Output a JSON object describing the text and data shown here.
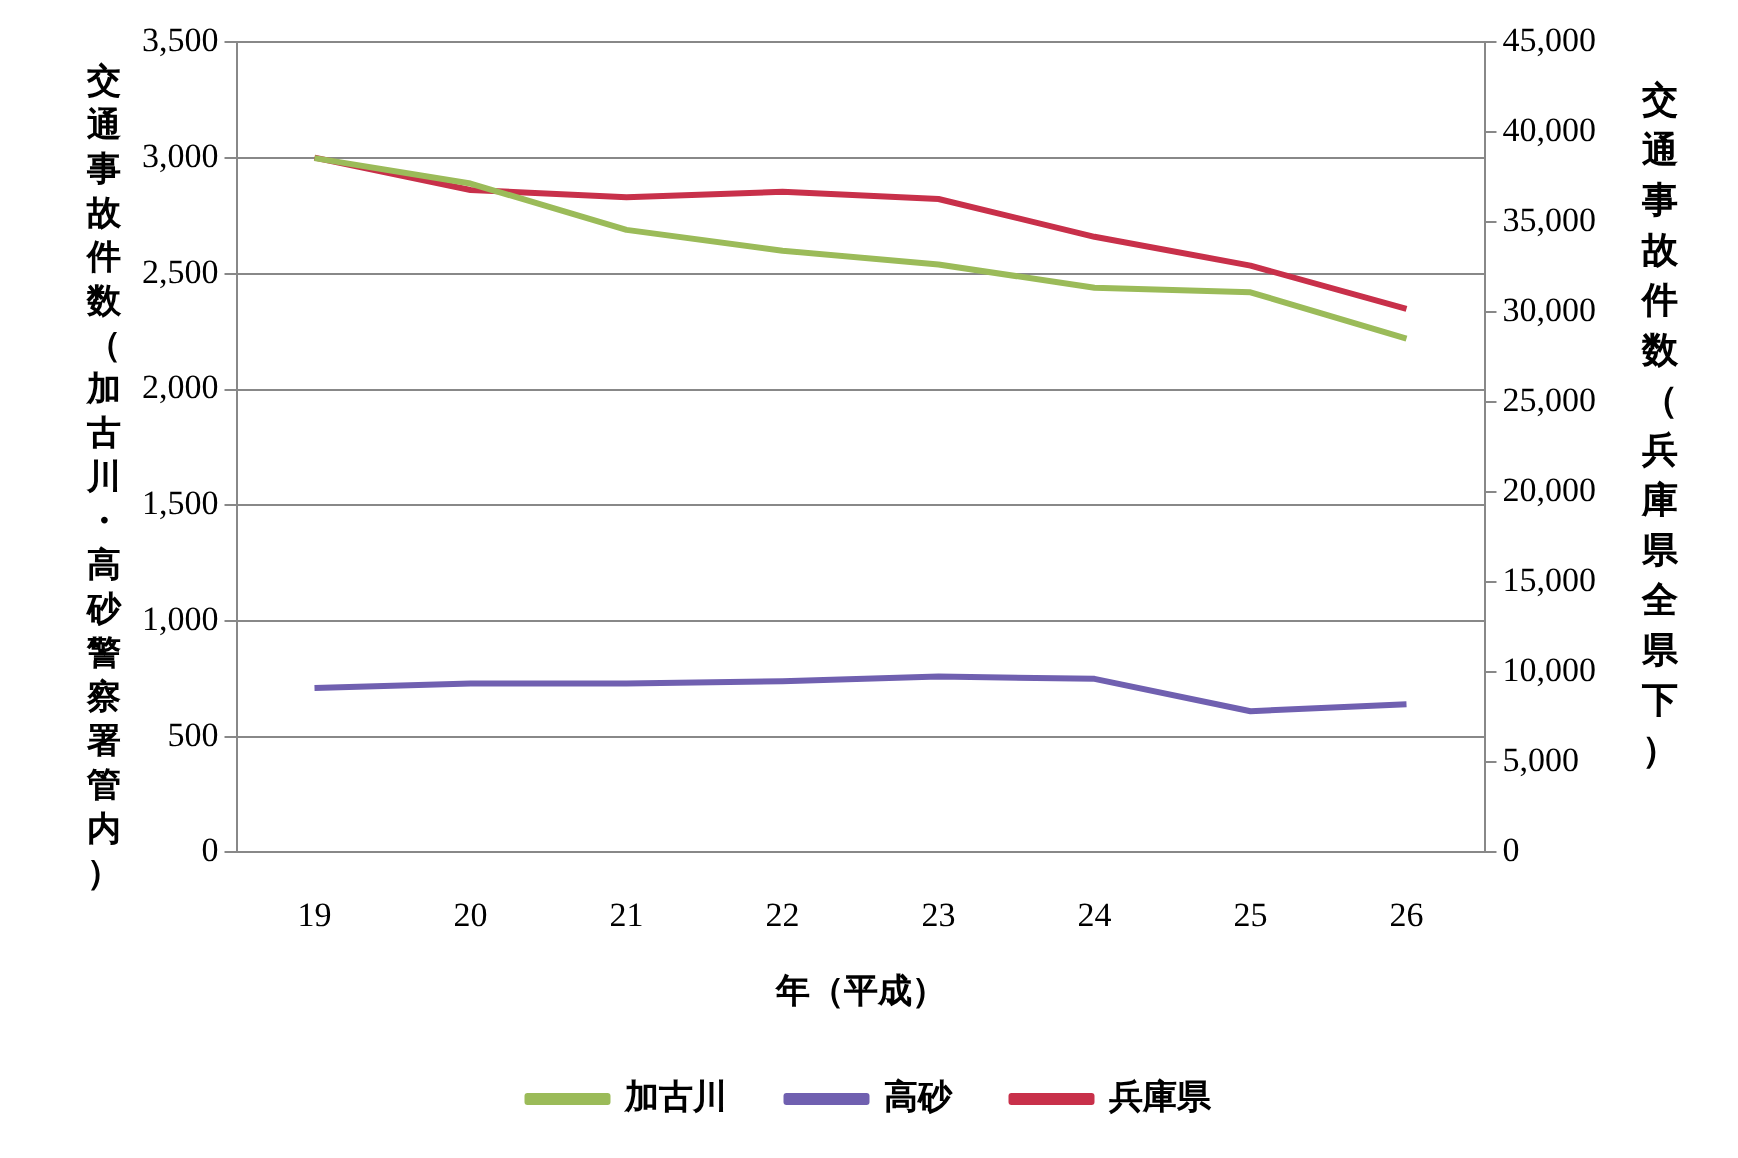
{
  "chart_data": {
    "type": "line",
    "xlabel": "年（平成）",
    "ylabel": "交通事故件数（加古川・高砂警察署管内）",
    "y2label": "交通事故件数（兵庫県全県下）",
    "categories": [
      "19",
      "20",
      "21",
      "22",
      "23",
      "24",
      "25",
      "26"
    ],
    "series": [
      {
        "name": "加古川",
        "color": "#9bbb59",
        "values": [
          3000,
          2890,
          2690,
          2600,
          2540,
          2440,
          2420,
          2220
        ]
      },
      {
        "name": "高砂",
        "color": "#7060b0",
        "values": [
          710,
          730,
          730,
          740,
          760,
          750,
          610,
          640
        ]
      },
      {
        "name": "兵庫県",
        "color": "#c8304a",
        "axis": "y2",
        "values": [
          38600,
          36800,
          36400,
          36700,
          36300,
          34200,
          32600,
          30200
        ]
      }
    ],
    "ylim": [
      0,
      3500
    ],
    "yticks": [
      0,
      500,
      {
        "value": 1000,
        "label": "1,000"
      },
      {
        "value": 1500,
        "label": "1,500"
      },
      {
        "value": 2000,
        "label": "2,000"
      },
      {
        "value": 2500,
        "label": "2,500"
      },
      {
        "value": 3000,
        "label": "3,000"
      },
      {
        "value": 3500,
        "label": "3,500"
      }
    ],
    "y2lim": [
      0,
      45000
    ],
    "y2ticks": [
      0,
      {
        "value": 5000,
        "label": "5,000"
      },
      {
        "value": 10000,
        "label": "10,000"
      },
      {
        "value": 15000,
        "label": "15,000"
      },
      {
        "value": 20000,
        "label": "20,000"
      },
      {
        "value": 25000,
        "label": "25,000"
      },
      {
        "value": 30000,
        "label": "30,000"
      },
      {
        "value": 35000,
        "label": "35,000"
      },
      {
        "value": 40000,
        "label": "40,000"
      },
      {
        "value": 45000,
        "label": "45,000"
      }
    ],
    "grid": "y",
    "legend": "bottom",
    "marker": "none",
    "line_style": "solid"
  }
}
